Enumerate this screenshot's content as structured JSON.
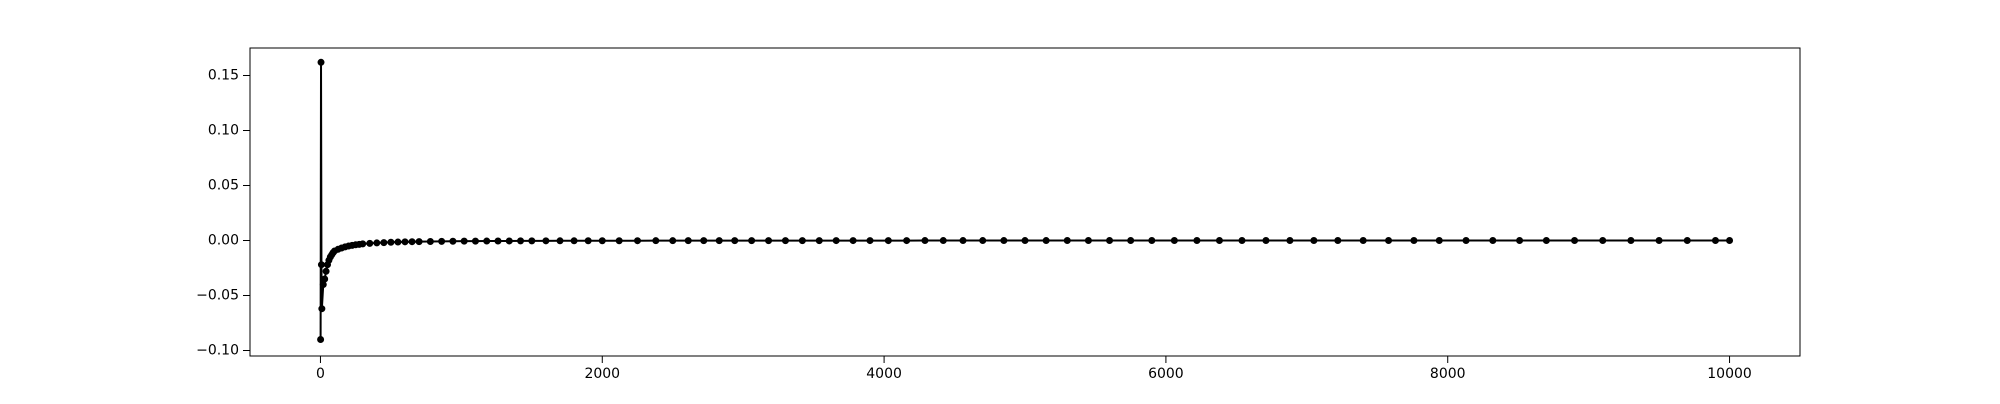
{
  "chart_data": {
    "type": "line",
    "title": "",
    "xlabel": "",
    "ylabel": "",
    "xlim": [
      -500,
      10500
    ],
    "ylim": [
      -0.105,
      0.175
    ],
    "grid": false,
    "x_ticks": [
      0,
      2000,
      4000,
      6000,
      8000,
      10000
    ],
    "x_tick_labels": [
      "0",
      "2000",
      "4000",
      "6000",
      "8000",
      "10000"
    ],
    "y_ticks": [
      -0.1,
      -0.05,
      0.0,
      0.05,
      0.1,
      0.15
    ],
    "y_tick_labels": [
      "−0.10",
      "−0.05",
      "0.00",
      "0.05",
      "0.10",
      "0.15"
    ],
    "series": [
      {
        "color": "#000000",
        "marker": "circle",
        "x": [
          1,
          4,
          7,
          10,
          20,
          30,
          40,
          50,
          60,
          70,
          80,
          90,
          100,
          125,
          150,
          175,
          200,
          225,
          250,
          275,
          300,
          350,
          400,
          450,
          500,
          550,
          600,
          650,
          700,
          780,
          860,
          940,
          1020,
          1100,
          1180,
          1260,
          1340,
          1420,
          1500,
          1600,
          1700,
          1800,
          1900,
          2000,
          2120,
          2250,
          2380,
          2500,
          2610,
          2720,
          2830,
          2940,
          3060,
          3180,
          3300,
          3420,
          3540,
          3660,
          3780,
          3900,
          4030,
          4160,
          4290,
          4420,
          4560,
          4700,
          4850,
          5000,
          5150,
          5300,
          5450,
          5600,
          5750,
          5900,
          6060,
          6220,
          6380,
          6540,
          6710,
          6880,
          7050,
          7220,
          7400,
          7580,
          7760,
          7940,
          8130,
          8320,
          8510,
          8700,
          8900,
          9100,
          9300,
          9500,
          9700,
          9900,
          10000
        ],
        "y": [
          -0.09,
          0.162,
          -0.022,
          -0.062,
          -0.04,
          -0.035,
          -0.028,
          -0.022,
          -0.018,
          -0.015,
          -0.013,
          -0.011,
          -0.0095,
          -0.008,
          -0.0068,
          -0.0058,
          -0.005,
          -0.0044,
          -0.0039,
          -0.0035,
          -0.0031,
          -0.0026,
          -0.0022,
          -0.0019,
          -0.0016,
          -0.0014,
          -0.0012,
          -0.0011,
          -0.001,
          -0.0009,
          -0.0008,
          -0.0007,
          -0.0006,
          -0.00055,
          -0.0005,
          -0.00045,
          -0.0004,
          -0.00037,
          -0.00034,
          -0.0003,
          -0.00028,
          -0.00026,
          -0.00024,
          -0.00022,
          -0.0002,
          -0.00018,
          -0.00016,
          -0.00015,
          -0.00014,
          -0.00013,
          -0.00012,
          -0.00011,
          -0.0001,
          -9e-05,
          -9e-05,
          -8e-05,
          -8e-05,
          -7e-05,
          -7e-05,
          -6e-05,
          -6e-05,
          -6e-05,
          -5e-05,
          -5e-05,
          -5e-05,
          -4e-05,
          -4e-05,
          -4e-05,
          -4e-05,
          -3e-05,
          -3e-05,
          -3e-05,
          -3e-05,
          -3e-05,
          -2e-05,
          -2e-05,
          -2e-05,
          -2e-05,
          -2e-05,
          -2e-05,
          -2e-05,
          -1e-05,
          -1e-05,
          -1e-05,
          -1e-05,
          -1e-05,
          -1e-05,
          -1e-05,
          -1e-05,
          -1e-05,
          -1e-05,
          0,
          0,
          0,
          0,
          0,
          0
        ]
      }
    ]
  }
}
